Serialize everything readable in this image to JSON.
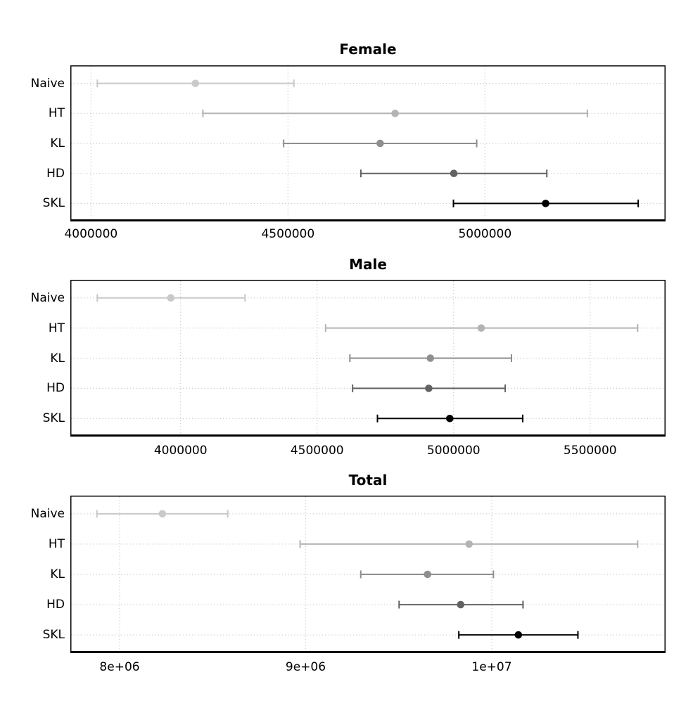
{
  "theme": {
    "background_color": "#ffffff",
    "grid_color": "#c9c9c9",
    "grid_style": "dotted",
    "panel_border_color": "#000000",
    "axis_line_color": "#000000",
    "text_color": "#000000"
  },
  "chart_data": [
    {
      "type": "scatter",
      "subtype": "horizontal-errorbar-forest",
      "title": "Female",
      "xlabel": "",
      "ylabel": "",
      "legend": "none",
      "grid": "dotted-major-only",
      "categories": [
        "Naive",
        "HT",
        "KL",
        "HD",
        "SKL"
      ],
      "xlim": [
        3947600,
        5458400
      ],
      "xticks": [
        {
          "value": 4000000,
          "label": "4000000"
        },
        {
          "value": 4500000,
          "label": "4500000"
        },
        {
          "value": 5000000,
          "label": "5000000"
        }
      ],
      "points": [
        {
          "category": "Naive",
          "estimate": 4265000,
          "lower": 4016000,
          "upper": 4515000,
          "color": "#c9c9c9"
        },
        {
          "category": "HT",
          "estimate": 4772000,
          "lower": 4284000,
          "upper": 5260000,
          "color": "#b3b3b3"
        },
        {
          "category": "KL",
          "estimate": 4734000,
          "lower": 4489000,
          "upper": 4979000,
          "color": "#8f8f8f"
        },
        {
          "category": "HD",
          "estimate": 4921000,
          "lower": 4685000,
          "upper": 5157000,
          "color": "#626262"
        },
        {
          "category": "SKL",
          "estimate": 5154000,
          "lower": 4920000,
          "upper": 5389000,
          "color": "#000000"
        }
      ]
    },
    {
      "type": "scatter",
      "subtype": "horizontal-errorbar-forest",
      "title": "Male",
      "xlabel": "",
      "ylabel": "",
      "legend": "none",
      "grid": "dotted-major-only",
      "categories": [
        "Naive",
        "HT",
        "KL",
        "HD",
        "SKL"
      ],
      "xlim": [
        3596200,
        5776300
      ],
      "xticks": [
        {
          "value": 4000000,
          "label": "4000000"
        },
        {
          "value": 4500000,
          "label": "4500000"
        },
        {
          "value": 5000000,
          "label": "5000000"
        },
        {
          "value": 5500000,
          "label": "5500000"
        }
      ],
      "points": [
        {
          "category": "Naive",
          "estimate": 3964000,
          "lower": 3695000,
          "upper": 4236000,
          "color": "#c9c9c9"
        },
        {
          "category": "HT",
          "estimate": 5101000,
          "lower": 4531000,
          "upper": 5674000,
          "color": "#b3b3b3"
        },
        {
          "category": "KL",
          "estimate": 4915000,
          "lower": 4620000,
          "upper": 5212000,
          "color": "#8f8f8f"
        },
        {
          "category": "HD",
          "estimate": 4909000,
          "lower": 4630000,
          "upper": 5189000,
          "color": "#626262"
        },
        {
          "category": "SKL",
          "estimate": 4986000,
          "lower": 4721000,
          "upper": 5253000,
          "color": "#000000"
        }
      ]
    },
    {
      "type": "scatter",
      "subtype": "horizontal-errorbar-forest",
      "title": "Total",
      "xlabel": "",
      "ylabel": "",
      "legend": "none",
      "grid": "dotted-major-only",
      "categories": [
        "Naive",
        "HT",
        "KL",
        "HD",
        "SKL"
      ],
      "xlim": [
        7735300,
        10934000
      ],
      "xticks": [
        {
          "value": 8000000,
          "label": "8e+06"
        },
        {
          "value": 9000000,
          "label": "9e+06"
        },
        {
          "value": 10000000,
          "label": "1e+07"
        }
      ],
      "points": [
        {
          "category": "Naive",
          "estimate": 8230000,
          "lower": 7878000,
          "upper": 8581000,
          "color": "#c9c9c9"
        },
        {
          "category": "HT",
          "estimate": 9878000,
          "lower": 8970000,
          "upper": 10784000,
          "color": "#b3b3b3"
        },
        {
          "category": "KL",
          "estimate": 9655000,
          "lower": 9296000,
          "upper": 10009000,
          "color": "#8f8f8f"
        },
        {
          "category": "HD",
          "estimate": 9833000,
          "lower": 9502000,
          "upper": 10168000,
          "color": "#626262"
        },
        {
          "category": "SKL",
          "estimate": 10143000,
          "lower": 9823000,
          "upper": 10463000,
          "color": "#000000"
        }
      ]
    }
  ]
}
